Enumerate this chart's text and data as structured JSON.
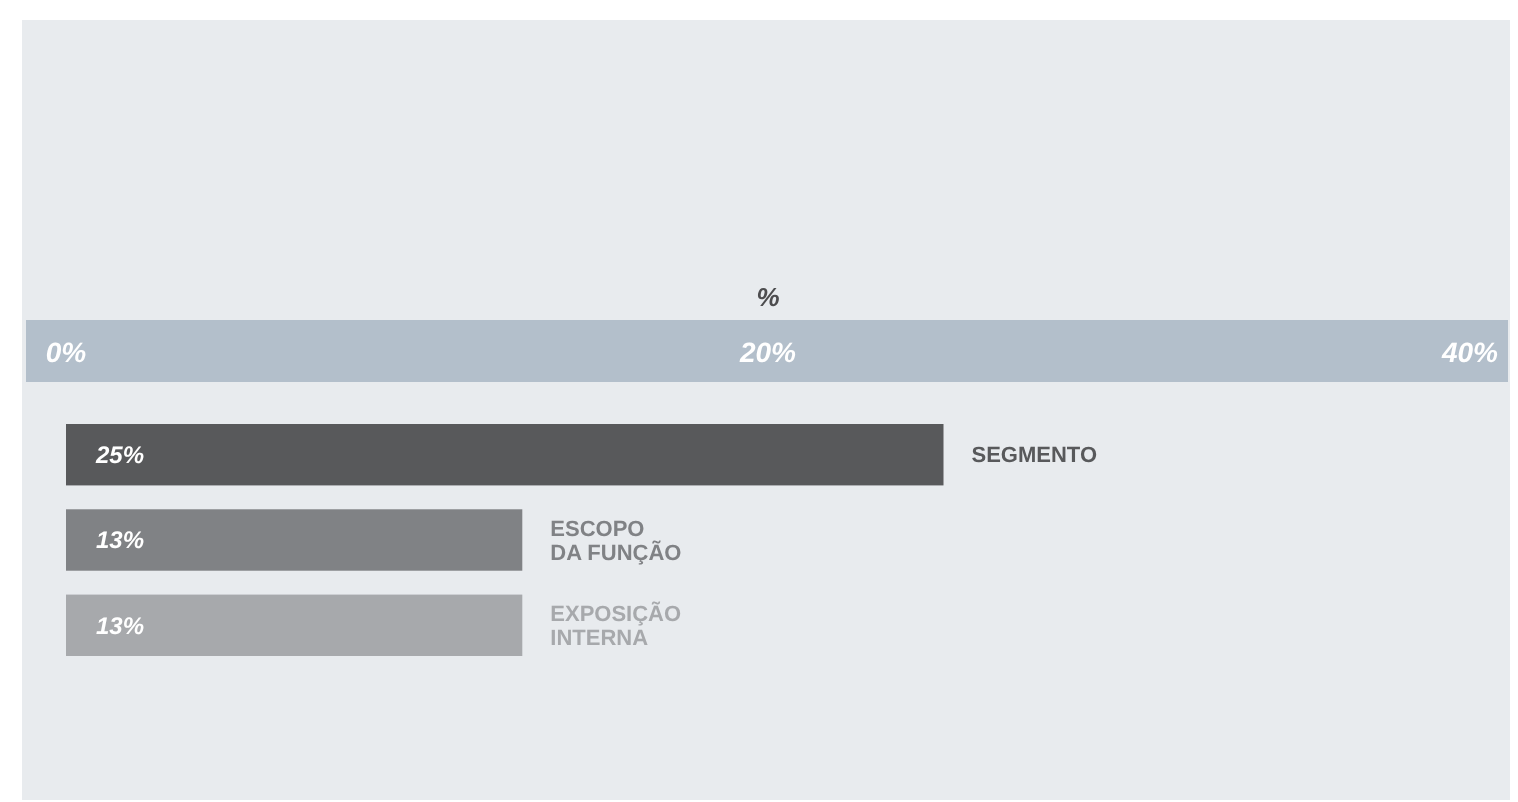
{
  "chart_data": {
    "type": "bar",
    "orientation": "horizontal",
    "xlabel": "%",
    "categories": [
      "SEGMENTO",
      "ESCOPO DA FUNÇÃO",
      "EXPOSIÇÃO INTERNA"
    ],
    "values": [
      25,
      13,
      13
    ],
    "colors": [
      "#58595b",
      "#808285",
      "#a7a9ac"
    ],
    "xlim": [
      0,
      40
    ],
    "xticks": [
      {
        "value": 0,
        "label": "0%"
      },
      {
        "value": 20,
        "label": "20%"
      },
      {
        "value": 40,
        "label": "40%"
      }
    ],
    "value_labels": [
      "25%",
      "13%",
      "13%"
    ],
    "grid": false
  }
}
